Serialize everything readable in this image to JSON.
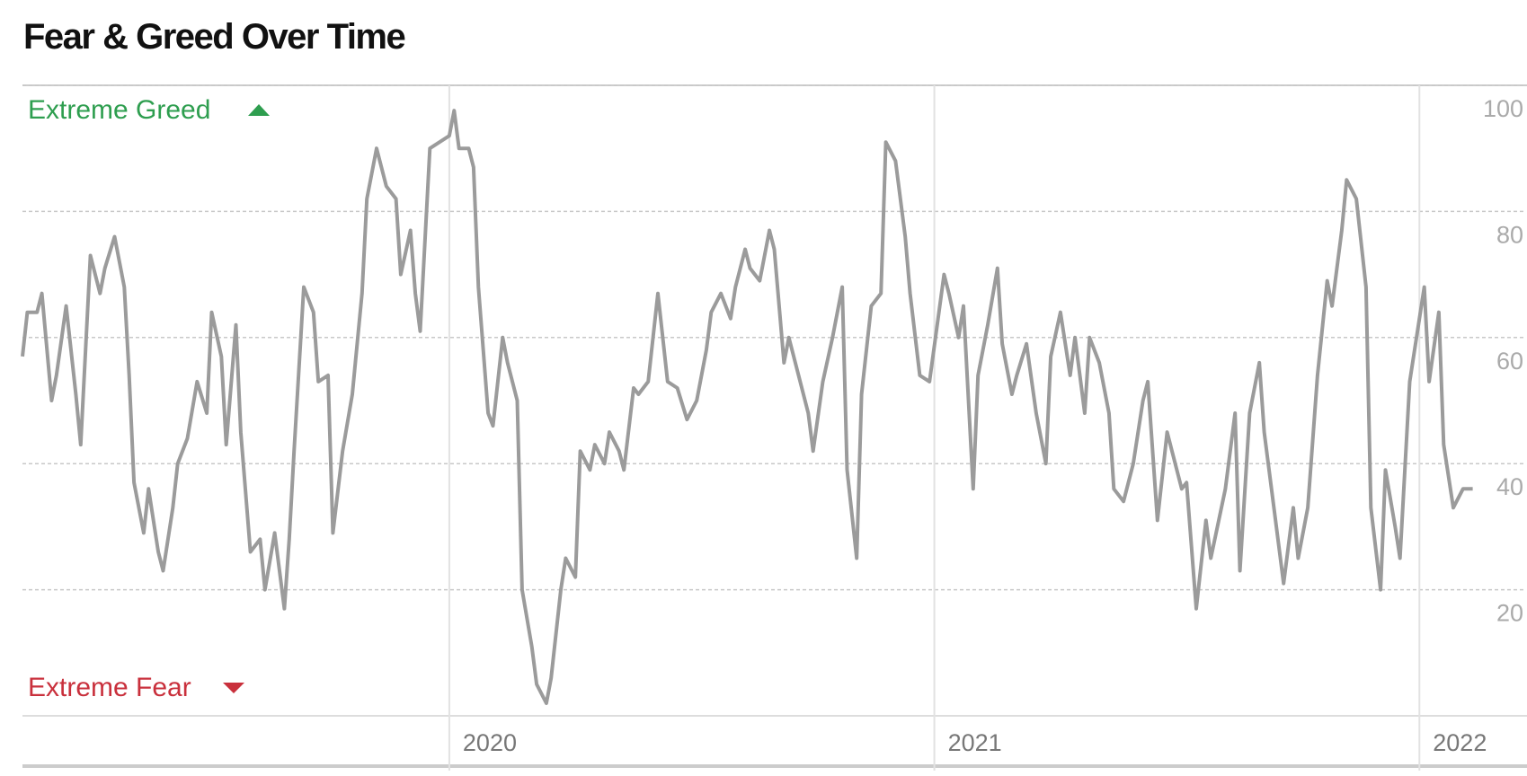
{
  "chart_data": {
    "type": "line",
    "title": "Fear & Greed Over Time",
    "annotations": {
      "top": "Extreme Greed",
      "bottom": "Extreme Fear"
    },
    "x": [
      2019.12,
      2019.13,
      2019.15,
      2019.16,
      2019.18,
      2019.19,
      2019.21,
      2019.23,
      2019.24,
      2019.26,
      2019.28,
      2019.29,
      2019.31,
      2019.33,
      2019.34,
      2019.35,
      2019.37,
      2019.38,
      2019.4,
      2019.41,
      2019.43,
      2019.44,
      2019.46,
      2019.48,
      2019.5,
      2019.51,
      2019.53,
      2019.54,
      2019.56,
      2019.57,
      2019.59,
      2019.61,
      2019.62,
      2019.64,
      2019.66,
      2019.67,
      2019.68,
      2019.7,
      2019.72,
      2019.73,
      2019.75,
      2019.76,
      2019.78,
      2019.8,
      2019.82,
      2019.83,
      2019.85,
      2019.87,
      2019.89,
      2019.9,
      2019.92,
      2019.93,
      2019.94,
      2019.96,
      2019.98,
      2020.0,
      2020.01,
      2020.02,
      2020.04,
      2020.05,
      2020.06,
      2020.08,
      2020.09,
      2020.11,
      2020.12,
      2020.14,
      2020.15,
      2020.17,
      2020.18,
      2020.2,
      2020.21,
      2020.23,
      2020.24,
      2020.26,
      2020.27,
      2020.29,
      2020.3,
      2020.32,
      2020.33,
      2020.35,
      2020.36,
      2020.38,
      2020.39,
      2020.41,
      2020.43,
      2020.45,
      2020.47,
      2020.49,
      2020.51,
      2020.53,
      2020.54,
      2020.56,
      2020.58,
      2020.59,
      2020.61,
      2020.62,
      2020.64,
      2020.66,
      2020.67,
      2020.69,
      2020.7,
      2020.72,
      2020.74,
      2020.75,
      2020.77,
      2020.79,
      2020.81,
      2020.82,
      2020.84,
      2020.85,
      2020.87,
      2020.89,
      2020.9,
      2020.92,
      2020.94,
      2020.95,
      2020.97,
      2020.99,
      2021.02,
      2021.03,
      2021.05,
      2021.06,
      2021.08,
      2021.09,
      2021.11,
      2021.13,
      2021.14,
      2021.16,
      2021.17,
      2021.19,
      2021.21,
      2021.23,
      2021.24,
      2021.26,
      2021.28,
      2021.29,
      2021.31,
      2021.32,
      2021.34,
      2021.36,
      2021.37,
      2021.39,
      2021.41,
      2021.43,
      2021.44,
      2021.46,
      2021.48,
      2021.49,
      2021.51,
      2021.52,
      2021.54,
      2021.56,
      2021.57,
      2021.6,
      2021.62,
      2021.63,
      2021.65,
      2021.67,
      2021.68,
      2021.7,
      2021.72,
      2021.74,
      2021.75,
      2021.77,
      2021.79,
      2021.81,
      2021.82,
      2021.84,
      2021.85,
      2021.87,
      2021.89,
      2021.9,
      2021.92,
      2021.93,
      2021.95,
      2021.96,
      2021.98,
      2022.01,
      2022.02,
      2022.04,
      2022.05,
      2022.07,
      2022.09,
      2022.11
    ],
    "series": [
      {
        "name": "Fear & Greed",
        "color": "#9b9b9b",
        "values": [
          57,
          64,
          64,
          67,
          50,
          54,
          65,
          51,
          43,
          73,
          67,
          71,
          76,
          68,
          54,
          37,
          29,
          36,
          26,
          23,
          33,
          40,
          44,
          53,
          48,
          64,
          57,
          43,
          62,
          45,
          26,
          28,
          20,
          29,
          17,
          28,
          42,
          68,
          64,
          53,
          54,
          29,
          42,
          51,
          67,
          82,
          90,
          84,
          82,
          70,
          77,
          67,
          61,
          90,
          91,
          92,
          96,
          90,
          90,
          87,
          68,
          48,
          46,
          60,
          56,
          50,
          20,
          11,
          5,
          2,
          6,
          20,
          25,
          22,
          42,
          39,
          43,
          40,
          45,
          42,
          39,
          52,
          51,
          53,
          67,
          53,
          52,
          47,
          50,
          58,
          64,
          67,
          63,
          68,
          74,
          71,
          69,
          77,
          74,
          56,
          60,
          54,
          48,
          42,
          53,
          60,
          68,
          39,
          25,
          51,
          65,
          67,
          91,
          88,
          76,
          67,
          54,
          53,
          70,
          67,
          60,
          65,
          36,
          54,
          62,
          71,
          59,
          51,
          54,
          59,
          48,
          40,
          57,
          64,
          54,
          60,
          48,
          60,
          56,
          48,
          36,
          34,
          40,
          50,
          53,
          31,
          45,
          42,
          36,
          37,
          17,
          31,
          25,
          36,
          48,
          23,
          48,
          56,
          45,
          33,
          21,
          33,
          25,
          33,
          54,
          69,
          65,
          77,
          85,
          82,
          68,
          33,
          20,
          39,
          30,
          25,
          53,
          68,
          53,
          64,
          43,
          33,
          36,
          36
        ]
      }
    ],
    "xlim": [
      2019.12,
      2022.22
    ],
    "xticks": [
      2020,
      2021,
      2022
    ],
    "ylim": [
      0,
      100
    ],
    "yticks": [
      20,
      40,
      60,
      80,
      100
    ],
    "grid": true
  }
}
